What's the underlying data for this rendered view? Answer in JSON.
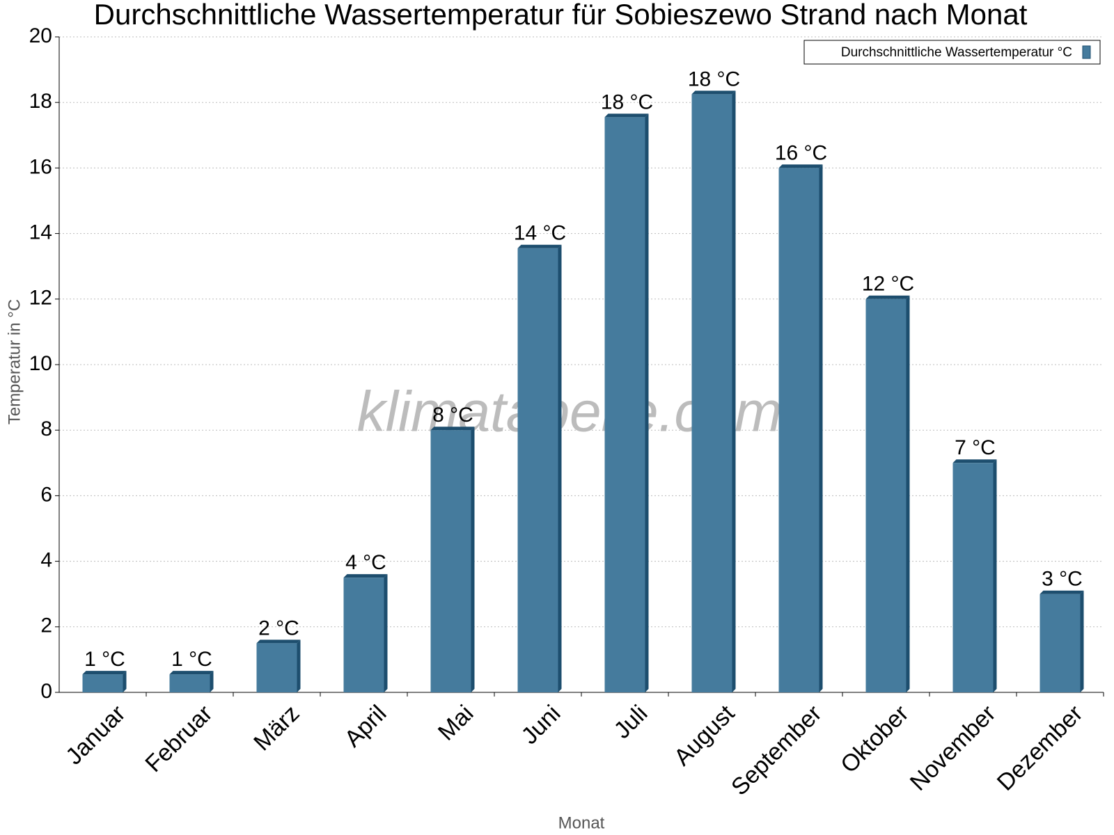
{
  "chart_data": {
    "type": "bar",
    "title": "Durchschnittliche Wassertemperatur für Sobieszewo Strand nach Monat",
    "watermark": "klimatabelle.com",
    "x_label": "Monat",
    "y_label": "Temperatur in °C",
    "categories": [
      "Januar",
      "Februar",
      "März",
      "April",
      "Mai",
      "Juni",
      "Juli",
      "August",
      "September",
      "Oktober",
      "November",
      "Dezember"
    ],
    "series": [
      {
        "name": "Durchschnittliche Wassertemperatur °C",
        "color": "#457b9d",
        "values": [
          0.55,
          0.55,
          1.5,
          3.5,
          8.0,
          13.55,
          17.55,
          18.25,
          16.0,
          12.0,
          7.0,
          3.0
        ],
        "value_labels": [
          "1 °C",
          "1 °C",
          "2 °C",
          "4 °C",
          "8 °C",
          "14 °C",
          "18 °C",
          "18 °C",
          "16 °C",
          "12 °C",
          "7 °C",
          "3 °C"
        ]
      }
    ],
    "ylim": [
      0,
      20
    ],
    "yticks": [
      0,
      2,
      4,
      6,
      8,
      10,
      12,
      14,
      16,
      18,
      20
    ],
    "grid": true,
    "legend": "top-right"
  }
}
